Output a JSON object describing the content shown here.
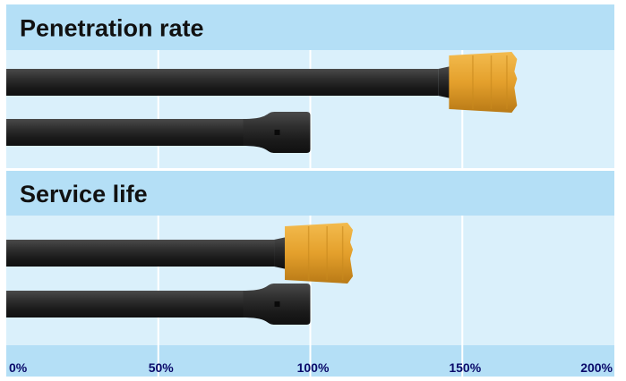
{
  "chart_data": {
    "type": "bar",
    "panels": [
      {
        "title": "Penetration rate",
        "bars": [
          {
            "value": 168,
            "tip": "bit"
          },
          {
            "value": 100,
            "tip": "shank"
          }
        ]
      },
      {
        "title": "Service life",
        "bars": [
          {
            "value": 114,
            "tip": "bit"
          },
          {
            "value": 100,
            "tip": "shank"
          }
        ]
      }
    ],
    "xlim": [
      0,
      200
    ],
    "ticks": [
      {
        "value": 0,
        "label": "0%"
      },
      {
        "value": 50,
        "label": "50%"
      },
      {
        "value": 100,
        "label": "100%"
      },
      {
        "value": 150,
        "label": "150%"
      },
      {
        "value": 200,
        "label": "200%"
      }
    ],
    "grid": true
  },
  "colors": {
    "header_bg": "#b4dff6",
    "plot_bg": "#daf0fb",
    "grid": "#ffffff",
    "rod": "#2b2b2b",
    "bit": "#e8a531",
    "tick_text": "#0a0a6a"
  }
}
